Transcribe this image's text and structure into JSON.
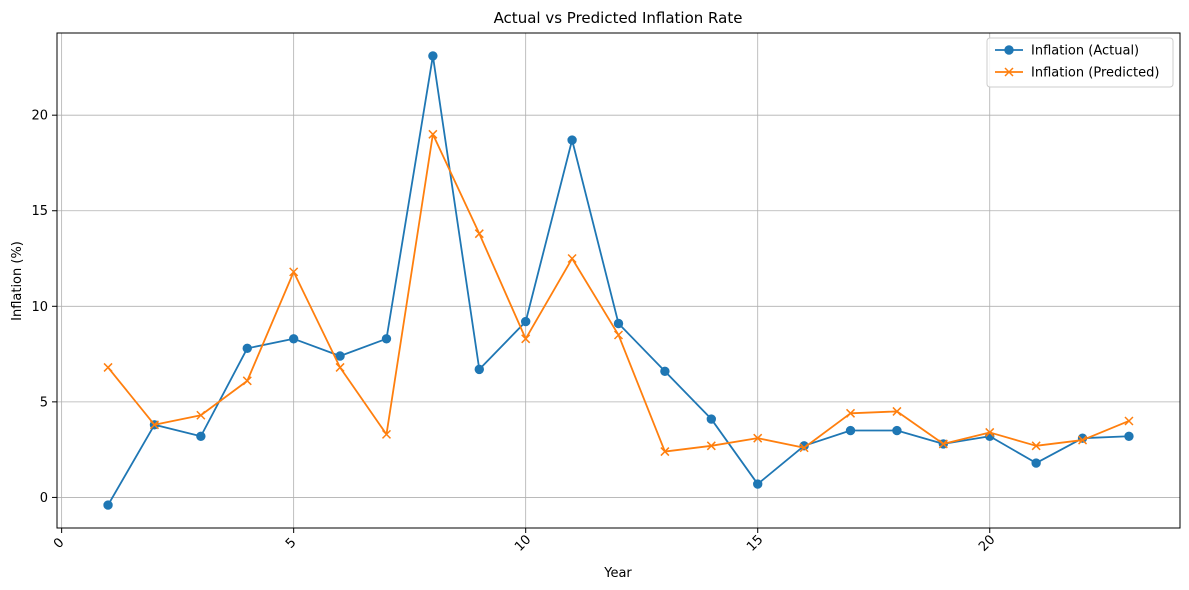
{
  "chart_data": {
    "type": "line",
    "title": "Actual vs Predicted Inflation Rate",
    "xlabel": "Year",
    "ylabel": "Inflation (%)",
    "xlim": [
      -0.1,
      24.1
    ],
    "ylim": [
      -1.6,
      24.3
    ],
    "xticks": [
      0,
      5,
      10,
      15,
      20
    ],
    "xtick_labels": [
      "0",
      "5",
      "10",
      "15",
      "20"
    ],
    "xtick_rotation_deg": 45,
    "yticks": [
      0,
      5,
      10,
      15,
      20
    ],
    "ytick_labels": [
      "0",
      "5",
      "10",
      "15",
      "20"
    ],
    "grid": true,
    "legend_position": "top-right",
    "x": [
      1,
      2,
      3,
      4,
      5,
      6,
      7,
      8,
      9,
      10,
      11,
      12,
      13,
      14,
      15,
      16,
      17,
      18,
      19,
      20,
      21,
      22,
      23
    ],
    "series": [
      {
        "name": "Inflation (Actual)",
        "marker": "circle",
        "color": "#1f77b4",
        "values": [
          -0.4,
          3.8,
          3.2,
          7.8,
          8.3,
          7.4,
          8.3,
          23.1,
          6.7,
          9.2,
          18.7,
          9.1,
          6.6,
          4.1,
          0.7,
          2.7,
          3.5,
          3.5,
          2.8,
          3.2,
          1.8,
          3.1,
          3.2
        ]
      },
      {
        "name": "Inflation (Predicted)",
        "marker": "x",
        "color": "#ff7f0e",
        "values": [
          6.8,
          3.8,
          4.3,
          6.1,
          11.8,
          6.8,
          3.3,
          19.0,
          13.8,
          8.3,
          12.5,
          8.5,
          2.4,
          2.7,
          3.1,
          2.6,
          4.4,
          4.5,
          2.8,
          3.4,
          2.7,
          3.0,
          4.0
        ]
      }
    ]
  }
}
